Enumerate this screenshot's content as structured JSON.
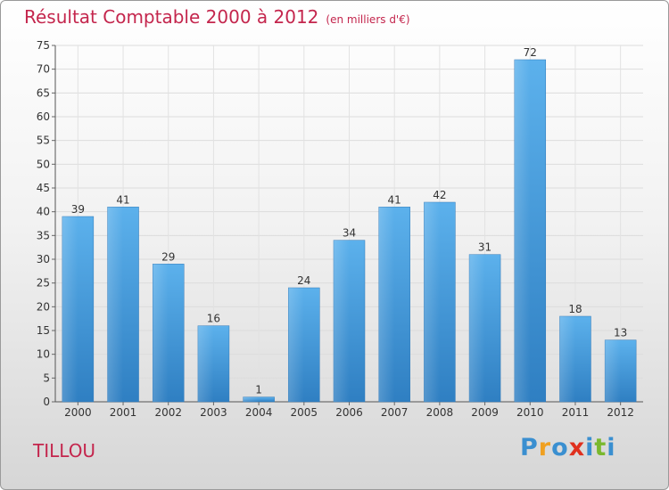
{
  "title": "Résultat Comptable 2000 à 2012",
  "subtitle": "(en milliers d'€)",
  "town": "TILLOU",
  "logo": {
    "letters": [
      "P",
      "r",
      "o",
      "x",
      "i",
      "t",
      "i"
    ],
    "colors": [
      "#3a8fd0",
      "#f0a020",
      "#3a8fd0",
      "#e0301e",
      "#3a8fd0",
      "#7ab82e",
      "#3a8fd0"
    ]
  },
  "chart_data": {
    "type": "bar",
    "title": "Résultat Comptable 2000 à 2012",
    "xlabel": "",
    "ylabel": "",
    "categories": [
      "2000",
      "2001",
      "2002",
      "2003",
      "2004",
      "2005",
      "2006",
      "2007",
      "2008",
      "2009",
      "2010",
      "2011",
      "2012"
    ],
    "values": [
      39,
      41,
      29,
      16,
      1,
      24,
      34,
      41,
      42,
      31,
      72,
      18,
      13
    ],
    "ylim": [
      0,
      75
    ],
    "yticks": [
      0,
      5,
      10,
      15,
      20,
      25,
      30,
      35,
      40,
      45,
      50,
      55,
      60,
      65,
      70,
      75
    ],
    "grid": true,
    "bar_color": "#4a9ee0"
  }
}
